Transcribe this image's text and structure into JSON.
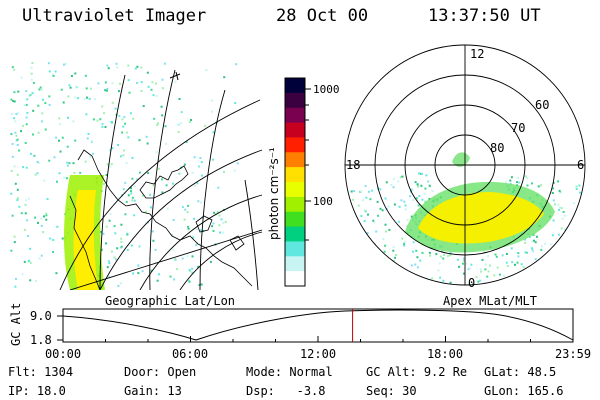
{
  "header": {
    "instrument": "Ultraviolet Imager",
    "date": "28 Oct 00",
    "time": "13:37:50 UT"
  },
  "left_map": {
    "label": "Geographic Lat/Lon"
  },
  "right_map": {
    "label": "Apex MLat/MLT",
    "mlt_labels": [
      "12",
      "18",
      "6",
      "0"
    ],
    "lat_labels": [
      "60",
      "70",
      "80"
    ]
  },
  "colorbar": {
    "unit_label": "photon cm⁻²s⁻¹",
    "ticks": [
      "1000",
      "100"
    ],
    "colors": [
      "#00003a",
      "#3a0040",
      "#7a0050",
      "#c80020",
      "#ff2000",
      "#ff8000",
      "#ffe000",
      "#e8ff00",
      "#a0f000",
      "#40e020",
      "#00d080",
      "#60e8e0",
      "#c8f4f4",
      "#ffffff"
    ]
  },
  "timeline": {
    "axis_label": "GC Alt",
    "y_ticks": [
      "9.0",
      "1.8"
    ],
    "x_ticks": [
      "00:00",
      "06:00",
      "12:00",
      "18:00",
      "23:59"
    ],
    "marker_time": "13:37:50",
    "marker_color": "#c00000"
  },
  "status": {
    "row1": [
      {
        "key": "Flt:",
        "value": "1304"
      },
      {
        "key": "Door:",
        "value": "Open"
      },
      {
        "key": "Mode:",
        "value": "Normal"
      },
      {
        "key": "GC Alt:",
        "value": "9.2 Re"
      },
      {
        "key": "GLat:",
        "value": "48.5"
      }
    ],
    "row2": [
      {
        "key": "IP:",
        "value": "18.0"
      },
      {
        "key": "Gain:",
        "value": "13"
      },
      {
        "key": "Dsp:",
        "value": "-3.8"
      },
      {
        "key": "Seq:",
        "value": "30"
      },
      {
        "key": "GLon:",
        "value": "165.6"
      }
    ]
  }
}
